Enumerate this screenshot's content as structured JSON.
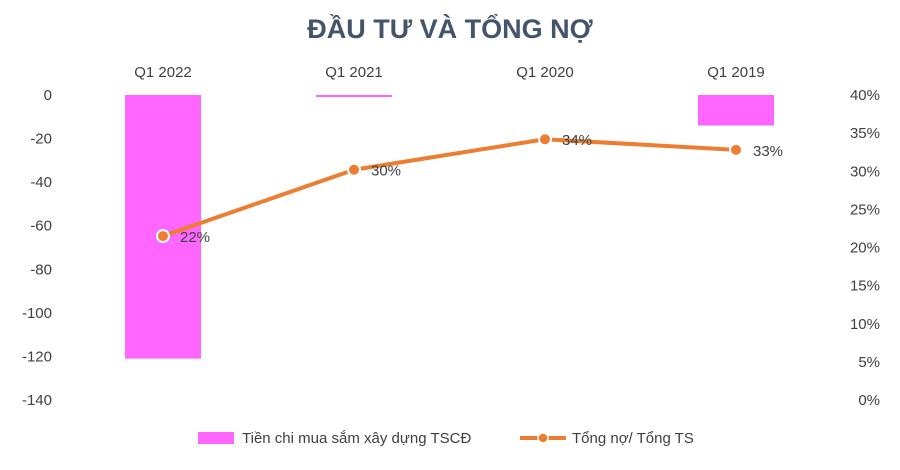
{
  "chart_data": {
    "type": "bar",
    "title": "ĐẦU TƯ VÀ TỔNG NỢ",
    "categories": [
      "Q1 2022",
      "Q1 2021",
      "Q1 2020",
      "Q1 2019"
    ],
    "series": [
      {
        "name": "Tiền chi mua sắm xây dựng TSCĐ",
        "type": "bar",
        "axis": "left",
        "color": "#FF66FF",
        "values": [
          -121,
          -0.5,
          0,
          -14
        ]
      },
      {
        "name": "Tổng nợ/ Tổng TS",
        "type": "line",
        "axis": "right",
        "color": "#ED7D31",
        "values": [
          0.215,
          0.302,
          0.342,
          0.328
        ],
        "data_labels": [
          "22%",
          "30%",
          "34%",
          "33%"
        ]
      }
    ],
    "y_left": {
      "min": -140,
      "max": 0,
      "ticks": [
        "0",
        "-20",
        "-40",
        "-60",
        "-80",
        "-100",
        "-120",
        "-140"
      ],
      "tick_values": [
        0,
        -20,
        -40,
        -60,
        -80,
        -100,
        -120,
        -140
      ]
    },
    "y_right": {
      "min": 0,
      "max": 0.4,
      "ticks": [
        "40%",
        "35%",
        "30%",
        "25%",
        "20%",
        "15%",
        "10%",
        "5%",
        "0%"
      ],
      "tick_values": [
        0.4,
        0.35,
        0.3,
        0.25,
        0.2,
        0.15,
        0.1,
        0.05,
        0
      ]
    },
    "category_axis_position": "top",
    "grid": false,
    "legend": "bottom"
  }
}
